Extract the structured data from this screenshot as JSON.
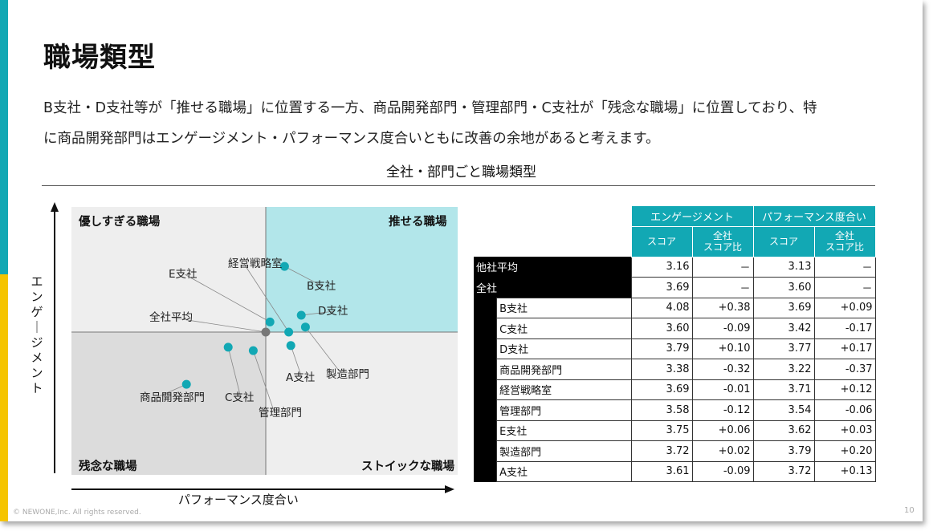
{
  "page": {
    "title": "職場類型",
    "desc_line1": "B支社・D支社等が「推せる職場」に位置する一方、商品開発部門・管理部門・C支社が「残念な職場」に位置しており、特",
    "desc_line2": "に商品開発部門はエンゲージメント・パフォーマンス度合いともに改善の余地があると考えます。",
    "chart_title": "全社・部門ごと職場類型",
    "footer": "© NEWONE,Inc. All rights reserved.",
    "page_number": "10"
  },
  "colors": {
    "accent_teal": "#12a8b4",
    "accent_yellow": "#f5c400",
    "quadrant_top_right": "#b2e6ea",
    "quadrant_gray": "#eeeeee",
    "quadrant_bottom_left": "#dcdcdc",
    "point": "#12a8b4"
  },
  "chart_data": {
    "type": "scatter",
    "xlabel": "パフォーマンス度合い",
    "ylabel": "エンゲージメント",
    "quadrants": {
      "top_left": "優しすぎる職場",
      "top_right": "推せる職場",
      "bottom_left": "残念な職場",
      "bottom_right": "ストイックな職場"
    },
    "points": [
      {
        "name": "全社平均",
        "x": 3.6,
        "y": 3.69
      },
      {
        "name": "B支社",
        "x": 3.69,
        "y": 4.08
      },
      {
        "name": "C支社",
        "x": 3.42,
        "y": 3.6
      },
      {
        "name": "D支社",
        "x": 3.77,
        "y": 3.79
      },
      {
        "name": "商品開発部門",
        "x": 3.22,
        "y": 3.38
      },
      {
        "name": "経営戦略室",
        "x": 3.71,
        "y": 3.69
      },
      {
        "name": "管理部門",
        "x": 3.54,
        "y": 3.58
      },
      {
        "name": "E支社",
        "x": 3.62,
        "y": 3.75
      },
      {
        "name": "製造部門",
        "x": 3.79,
        "y": 3.72
      },
      {
        "name": "A支社",
        "x": 3.72,
        "y": 3.61
      }
    ]
  },
  "table": {
    "group_headers": [
      "エンゲージメント",
      "パフォーマンス度合い"
    ],
    "sub_headers": [
      "スコア",
      "全社\nスコア比",
      "スコア",
      "全社\nスコア比"
    ],
    "rows": [
      {
        "name": "他社平均",
        "e": "3.16",
        "e_diff": "－",
        "p": "3.13",
        "p_diff": "－",
        "level": 0
      },
      {
        "name": "全社",
        "e": "3.69",
        "e_diff": "－",
        "p": "3.60",
        "p_diff": "－",
        "level": 0
      },
      {
        "name": "B支社",
        "e": "4.08",
        "e_diff": "+0.38",
        "p": "3.69",
        "p_diff": "+0.09",
        "level": 1
      },
      {
        "name": "C支社",
        "e": "3.60",
        "e_diff": "-0.09",
        "p": "3.42",
        "p_diff": "-0.17",
        "level": 1
      },
      {
        "name": "D支社",
        "e": "3.79",
        "e_diff": "+0.10",
        "p": "3.77",
        "p_diff": "+0.17",
        "level": 1
      },
      {
        "name": "商品開発部門",
        "e": "3.38",
        "e_diff": "-0.32",
        "p": "3.22",
        "p_diff": "-0.37",
        "level": 1
      },
      {
        "name": "経営戦略室",
        "e": "3.69",
        "e_diff": "-0.01",
        "p": "3.71",
        "p_diff": "+0.12",
        "level": 1
      },
      {
        "name": "管理部門",
        "e": "3.58",
        "e_diff": "-0.12",
        "p": "3.54",
        "p_diff": "-0.06",
        "level": 1
      },
      {
        "name": "E支社",
        "e": "3.75",
        "e_diff": "+0.06",
        "p": "3.62",
        "p_diff": "+0.03",
        "level": 1
      },
      {
        "name": "製造部門",
        "e": "3.72",
        "e_diff": "+0.02",
        "p": "3.79",
        "p_diff": "+0.20",
        "level": 1
      },
      {
        "name": "A支社",
        "e": "3.61",
        "e_diff": "-0.09",
        "p": "3.72",
        "p_diff": "+0.13",
        "level": 1
      }
    ]
  }
}
